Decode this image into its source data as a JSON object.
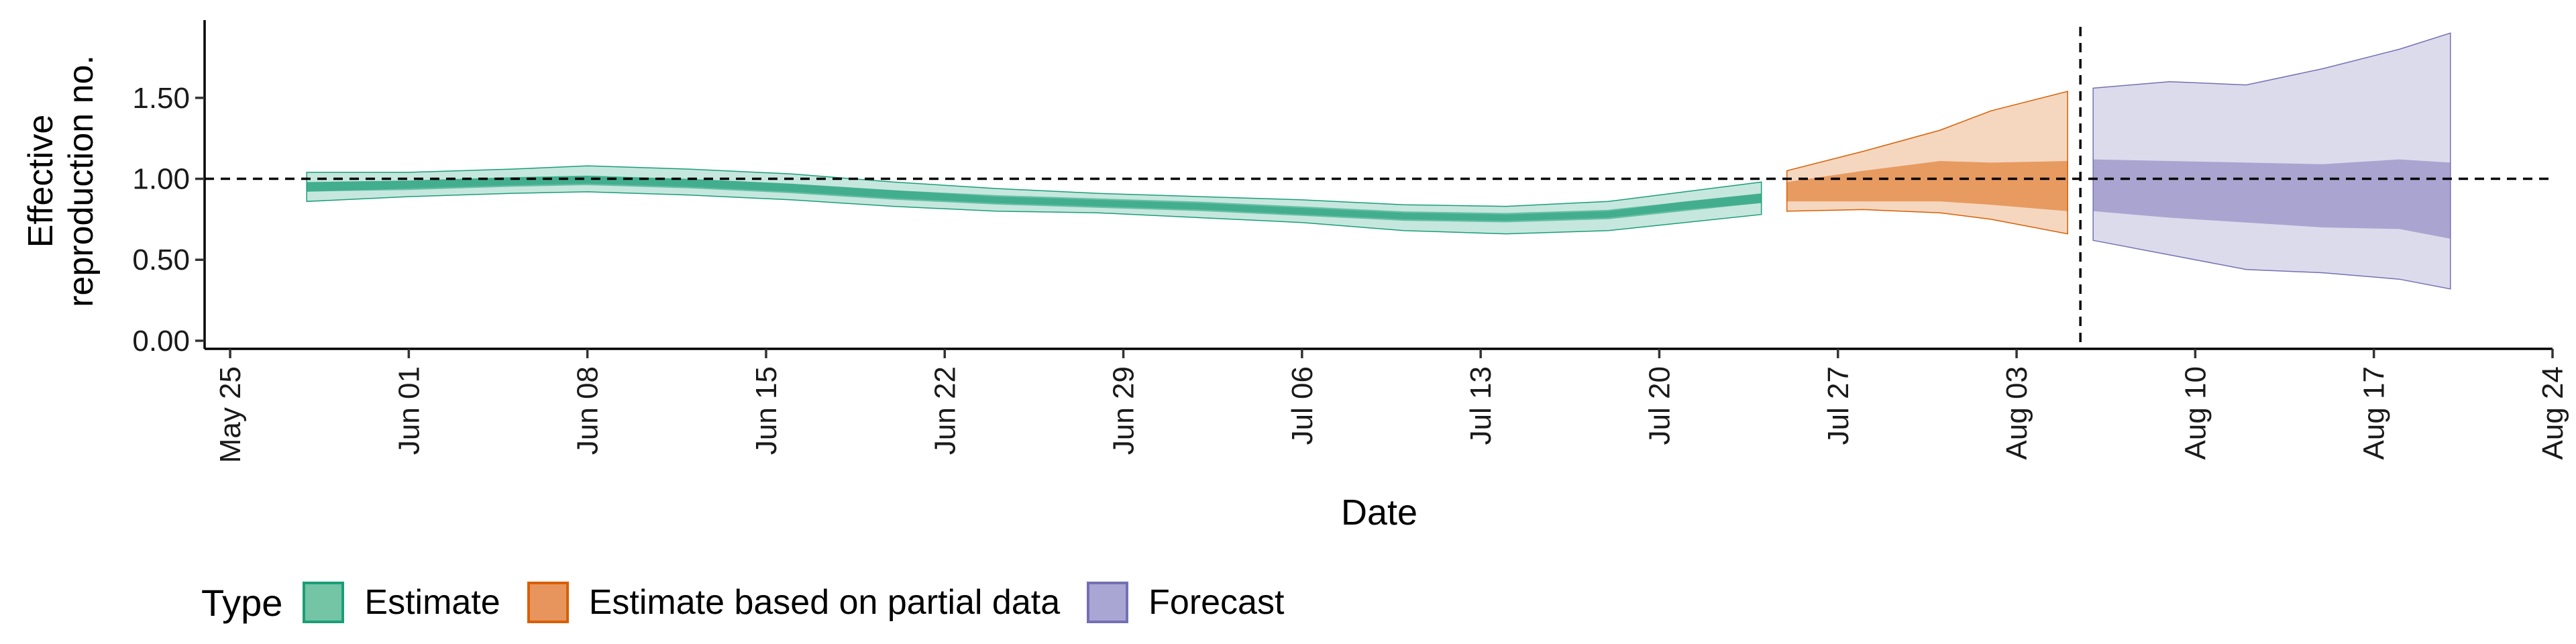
{
  "chart_data": {
    "type": "area",
    "ylabel_lines": [
      "Effective",
      "reproduction no."
    ],
    "xlabel": "Date",
    "ylim": [
      -0.05,
      1.98
    ],
    "yticks": [
      0.0,
      0.5,
      1.0,
      1.5
    ],
    "ytick_labels": [
      "0.00",
      "0.50",
      "1.00",
      "1.50"
    ],
    "xlim": [
      "2020-05-24",
      "2020-08-24"
    ],
    "xticks": [
      "2020-05-25",
      "2020-06-01",
      "2020-06-08",
      "2020-06-15",
      "2020-06-22",
      "2020-06-29",
      "2020-07-06",
      "2020-07-13",
      "2020-07-20",
      "2020-07-27",
      "2020-08-03",
      "2020-08-10",
      "2020-08-17",
      "2020-08-24"
    ],
    "xtick_labels": [
      "May 25",
      "Jun 01",
      "Jun 08",
      "Jun 15",
      "Jun 22",
      "Jun 29",
      "Jul 06",
      "Jul 13",
      "Jul 20",
      "Jul 27",
      "Aug 03",
      "Aug 10",
      "Aug 17",
      "Aug 24"
    ],
    "reference_line_y": 1.0,
    "forecast_date": "2020-08-05",
    "series": [
      {
        "name": "Estimate",
        "fill": "#1b9e77",
        "x": [
          "2020-05-28",
          "2020-06-01",
          "2020-06-05",
          "2020-06-08",
          "2020-06-12",
          "2020-06-16",
          "2020-06-20",
          "2020-06-24",
          "2020-06-28",
          "2020-07-02",
          "2020-07-06",
          "2020-07-10",
          "2020-07-14",
          "2020-07-18",
          "2020-07-21",
          "2020-07-24"
        ],
        "median": [
          0.95,
          0.96,
          0.98,
          0.99,
          0.97,
          0.94,
          0.9,
          0.87,
          0.85,
          0.83,
          0.8,
          0.77,
          0.76,
          0.78,
          0.83,
          0.88
        ],
        "lower_50": [
          0.92,
          0.94,
          0.96,
          0.97,
          0.95,
          0.92,
          0.88,
          0.85,
          0.83,
          0.81,
          0.78,
          0.75,
          0.74,
          0.76,
          0.81,
          0.85
        ],
        "upper_50": [
          0.98,
          0.99,
          1.01,
          1.02,
          1.0,
          0.97,
          0.93,
          0.89,
          0.87,
          0.85,
          0.82,
          0.79,
          0.78,
          0.8,
          0.86,
          0.91
        ],
        "lower_90": [
          0.86,
          0.89,
          0.91,
          0.92,
          0.9,
          0.87,
          0.83,
          0.8,
          0.79,
          0.76,
          0.73,
          0.68,
          0.66,
          0.68,
          0.73,
          0.78
        ],
        "upper_90": [
          1.04,
          1.04,
          1.06,
          1.08,
          1.06,
          1.03,
          0.98,
          0.94,
          0.91,
          0.89,
          0.87,
          0.84,
          0.83,
          0.86,
          0.92,
          0.98
        ]
      },
      {
        "name": "Estimate based on partial data",
        "fill": "#d95f02",
        "x": [
          "2020-07-25",
          "2020-07-28",
          "2020-07-31",
          "2020-08-02",
          "2020-08-05"
        ],
        "median": [
          0.93,
          0.95,
          0.96,
          0.95,
          0.95
        ],
        "lower_50": [
          0.86,
          0.86,
          0.86,
          0.84,
          0.8
        ],
        "upper_50": [
          0.98,
          1.05,
          1.11,
          1.1,
          1.11
        ],
        "lower_90": [
          0.8,
          0.81,
          0.79,
          0.75,
          0.66
        ],
        "upper_90": [
          1.05,
          1.17,
          1.3,
          1.42,
          1.54
        ]
      },
      {
        "name": "Forecast",
        "fill": "#7570b3",
        "x": [
          "2020-08-06",
          "2020-08-09",
          "2020-08-12",
          "2020-08-15",
          "2020-08-18",
          "2020-08-20"
        ],
        "median": [
          0.95,
          0.94,
          0.93,
          0.92,
          0.91,
          0.9
        ],
        "lower_50": [
          0.8,
          0.76,
          0.73,
          0.7,
          0.69,
          0.63
        ],
        "upper_50": [
          1.12,
          1.11,
          1.1,
          1.09,
          1.12,
          1.1
        ],
        "lower_90": [
          0.62,
          0.53,
          0.44,
          0.42,
          0.38,
          0.32
        ],
        "upper_90": [
          1.56,
          1.6,
          1.58,
          1.68,
          1.8,
          1.9
        ]
      }
    ],
    "legend": {
      "title": "Type",
      "position": "bottom-left",
      "items": [
        {
          "label": "Estimate",
          "fill": "#74c4a6",
          "border": "#1b9e77"
        },
        {
          "label": "Estimate based on partial data",
          "fill": "#e8955d",
          "border": "#d95f02"
        },
        {
          "label": "Forecast",
          "fill": "#a9a6d4",
          "border": "#7570b3"
        }
      ]
    }
  }
}
